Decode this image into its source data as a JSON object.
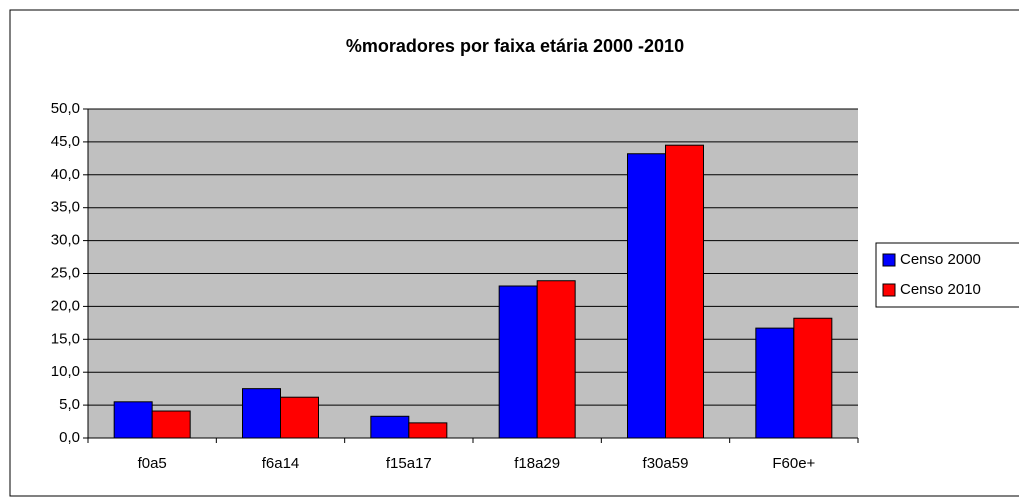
{
  "chart_data": {
    "type": "bar",
    "title": "%moradores por faixa etária 2000 -2010",
    "categories": [
      "f0a5",
      "f6a14",
      "f15a17",
      "f18a29",
      "f30a59",
      "F60e+"
    ],
    "series": [
      {
        "name": "Censo 2000",
        "color": "#0000ff",
        "values": [
          5.5,
          7.5,
          3.3,
          23.1,
          43.2,
          16.7
        ]
      },
      {
        "name": "Censo 2010",
        "color": "#ff0000",
        "values": [
          4.1,
          6.2,
          2.3,
          23.9,
          44.5,
          18.2
        ]
      }
    ],
    "ylim": [
      0,
      50
    ],
    "yticks": [
      {
        "value": 0,
        "label": "0,0"
      },
      {
        "value": 5,
        "label": "5,0"
      },
      {
        "value": 10,
        "label": "10,0"
      },
      {
        "value": 15,
        "label": "15,0"
      },
      {
        "value": 20,
        "label": "20,0"
      },
      {
        "value": 25,
        "label": "25,0"
      },
      {
        "value": 30,
        "label": "30,0"
      },
      {
        "value": 35,
        "label": "35,0"
      },
      {
        "value": 40,
        "label": "40,0"
      },
      {
        "value": 45,
        "label": "45,0"
      },
      {
        "value": 50,
        "label": "50,0"
      }
    ],
    "grid": true,
    "legend": "right"
  }
}
